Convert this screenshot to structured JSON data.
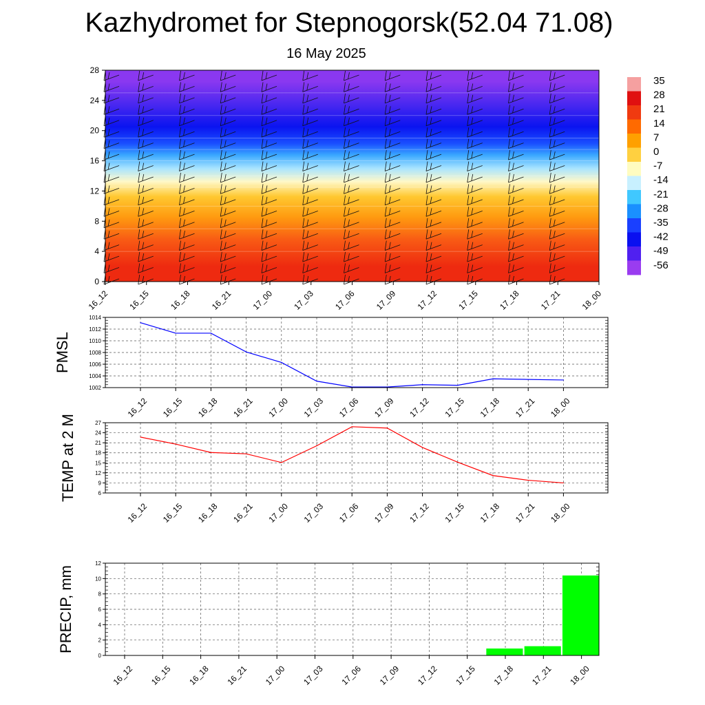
{
  "title": "Kazhydromet for Stepnogorsk(52.04 71.08)",
  "subtitle": "16 May 2025",
  "time_labels": [
    "16_12",
    "16_15",
    "16_18",
    "16_21",
    "17_00",
    "17_03",
    "17_06",
    "17_09",
    "17_12",
    "17_15",
    "17_18",
    "17_21",
    "18_00"
  ],
  "chart_data": [
    {
      "type": "heatmap",
      "name": "temperature cross-section",
      "y_ticks": [
        "0",
        "4",
        "8",
        "12",
        "16",
        "20",
        "24",
        "28"
      ],
      "ylim": [
        0,
        28
      ],
      "colorbar": {
        "labels": [
          "35",
          "28",
          "21",
          "14",
          "7",
          "0",
          "-7",
          "-14",
          "-21",
          "-28",
          "-35",
          "-42",
          "-49",
          "-56"
        ],
        "colors": [
          "#f5a0a0",
          "#e01010",
          "#f03a10",
          "#ff6a00",
          "#ffa000",
          "#ffd040",
          "#fffcc0",
          "#c8f0ff",
          "#40c8ff",
          "#1a90ff",
          "#1a40ff",
          "#0a10f0",
          "#5020f0",
          "#9a3cf0"
        ]
      },
      "bands": [
        {
          "from": 0,
          "to": 4,
          "color": "#ee2a10"
        },
        {
          "from": 4,
          "to": 7,
          "color": "#f85a14"
        },
        {
          "from": 7,
          "to": 10,
          "color": "#ff9a10"
        },
        {
          "from": 10,
          "to": 12.5,
          "color": "#ffc830"
        },
        {
          "from": 12.5,
          "to": 14,
          "color": "#fff8c8"
        },
        {
          "from": 14,
          "to": 16,
          "color": "#a8e4ff"
        },
        {
          "from": 16,
          "to": 17.5,
          "color": "#3aa8ff"
        },
        {
          "from": 17.5,
          "to": 19,
          "color": "#1a50ff"
        },
        {
          "from": 19,
          "to": 22,
          "color": "#0a14f0"
        },
        {
          "from": 22,
          "to": 25,
          "color": "#4a28f0"
        },
        {
          "from": 25,
          "to": 28,
          "color": "#8a38f0"
        }
      ],
      "grid": false
    },
    {
      "type": "line",
      "ylabel": "PMSL",
      "y_ticks": [
        "1002",
        "1004",
        "1006",
        "1008",
        "1010",
        "1012",
        "1014"
      ],
      "ylim": [
        1002,
        1014
      ],
      "color": "#0000ff",
      "values": [
        1013.1,
        1011.3,
        1011.3,
        1008.1,
        1006.3,
        1003.1,
        1002.1,
        1002.1,
        1002.5,
        1002.4,
        1003.5,
        1003.4,
        1003.3
      ],
      "grid": true
    },
    {
      "type": "line",
      "ylabel": "TEMP at 2 M",
      "y_ticks": [
        "6",
        "9",
        "12",
        "15",
        "18",
        "21",
        "24",
        "27"
      ],
      "ylim": [
        6,
        27
      ],
      "color": "#ff0000",
      "values": [
        22.7,
        20.6,
        18.1,
        17.7,
        15.1,
        20.1,
        25.8,
        25.4,
        19.6,
        15.2,
        11.2,
        9.8,
        9.0
      ],
      "grid": true
    },
    {
      "type": "bar",
      "ylabel": "PRECIP, mm",
      "y_ticks": [
        "0",
        "2",
        "4",
        "6",
        "8",
        "10",
        "12"
      ],
      "ylim": [
        0,
        12
      ],
      "color": "#00ff00",
      "values": [
        0,
        0,
        0,
        0,
        0,
        0,
        0,
        0,
        0,
        0,
        0.9,
        1.2,
        10.4
      ],
      "grid": true
    }
  ]
}
